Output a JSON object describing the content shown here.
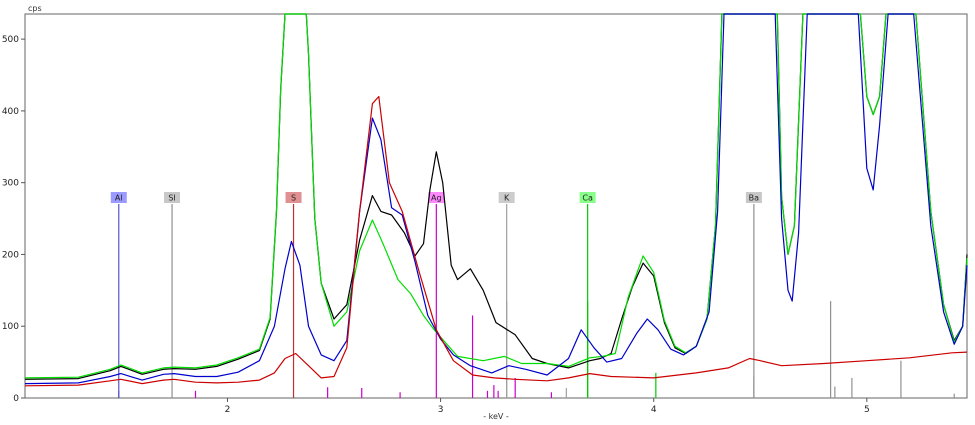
{
  "chart_data": {
    "type": "line",
    "xlabel": "- keV -",
    "ylabel": "cps",
    "xlim": [
      1.05,
      5.47
    ],
    "ylim": [
      0,
      535
    ],
    "x_ticks": [
      2,
      3,
      4,
      5
    ],
    "y_ticks": [
      0,
      100,
      200,
      300,
      400,
      500
    ],
    "grid": false,
    "series": [
      {
        "color": "#000000",
        "points": [
          [
            1.05,
            26
          ],
          [
            1.3,
            27
          ],
          [
            1.45,
            38
          ],
          [
            1.5,
            44
          ],
          [
            1.6,
            33
          ],
          [
            1.7,
            40
          ],
          [
            1.75,
            41
          ],
          [
            1.85,
            40
          ],
          [
            1.95,
            44
          ],
          [
            2.05,
            54
          ],
          [
            2.15,
            66
          ],
          [
            2.2,
            110
          ],
          [
            2.23,
            260
          ],
          [
            2.25,
            430
          ],
          [
            2.27,
            535
          ],
          [
            2.37,
            535
          ],
          [
            2.38,
            480
          ],
          [
            2.41,
            250
          ],
          [
            2.44,
            160
          ],
          [
            2.5,
            110
          ],
          [
            2.56,
            130
          ],
          [
            2.62,
            220
          ],
          [
            2.68,
            282
          ],
          [
            2.72,
            260
          ],
          [
            2.77,
            255
          ],
          [
            2.83,
            230
          ],
          [
            2.88,
            198
          ],
          [
            2.92,
            215
          ],
          [
            2.95,
            290
          ],
          [
            2.98,
            343
          ],
          [
            3.01,
            300
          ],
          [
            3.05,
            185
          ],
          [
            3.08,
            165
          ],
          [
            3.14,
            180
          ],
          [
            3.2,
            150
          ],
          [
            3.26,
            105
          ],
          [
            3.35,
            88
          ],
          [
            3.43,
            55
          ],
          [
            3.5,
            48
          ],
          [
            3.6,
            42
          ],
          [
            3.7,
            52
          ],
          [
            3.75,
            55
          ],
          [
            3.8,
            62
          ],
          [
            3.85,
            110
          ],
          [
            3.9,
            155
          ],
          [
            3.95,
            188
          ],
          [
            4.0,
            170
          ],
          [
            4.05,
            105
          ],
          [
            4.1,
            70
          ],
          [
            4.15,
            62
          ],
          [
            4.2,
            72
          ],
          [
            4.25,
            110
          ],
          [
            4.29,
            240
          ],
          [
            4.32,
            535
          ],
          [
            4.58,
            535
          ],
          [
            4.6,
            280
          ],
          [
            4.63,
            200
          ],
          [
            4.66,
            240
          ],
          [
            4.7,
            535
          ],
          [
            4.97,
            535
          ],
          [
            5.0,
            420
          ],
          [
            5.03,
            395
          ],
          [
            5.06,
            420
          ],
          [
            5.09,
            535
          ],
          [
            5.23,
            535
          ],
          [
            5.3,
            260
          ],
          [
            5.36,
            130
          ],
          [
            5.41,
            80
          ],
          [
            5.45,
            100
          ],
          [
            5.47,
            200
          ]
        ]
      },
      {
        "color": "#00dd00",
        "points": [
          [
            1.05,
            28
          ],
          [
            1.3,
            29
          ],
          [
            1.45,
            40
          ],
          [
            1.5,
            46
          ],
          [
            1.6,
            35
          ],
          [
            1.7,
            42
          ],
          [
            1.75,
            43
          ],
          [
            1.85,
            42
          ],
          [
            1.95,
            46
          ],
          [
            2.05,
            56
          ],
          [
            2.15,
            68
          ],
          [
            2.2,
            112
          ],
          [
            2.23,
            262
          ],
          [
            2.25,
            432
          ],
          [
            2.27,
            535
          ],
          [
            2.37,
            535
          ],
          [
            2.38,
            480
          ],
          [
            2.41,
            250
          ],
          [
            2.44,
            160
          ],
          [
            2.5,
            100
          ],
          [
            2.56,
            120
          ],
          [
            2.62,
            205
          ],
          [
            2.68,
            248
          ],
          [
            2.73,
            215
          ],
          [
            2.8,
            165
          ],
          [
            2.86,
            145
          ],
          [
            2.92,
            115
          ],
          [
            2.97,
            95
          ],
          [
            3.02,
            78
          ],
          [
            3.08,
            58
          ],
          [
            3.2,
            52
          ],
          [
            3.3,
            58
          ],
          [
            3.38,
            48
          ],
          [
            3.5,
            48
          ],
          [
            3.6,
            44
          ],
          [
            3.7,
            56
          ],
          [
            3.76,
            58
          ],
          [
            3.82,
            62
          ],
          [
            3.88,
            140
          ],
          [
            3.95,
            198
          ],
          [
            4.0,
            175
          ],
          [
            4.05,
            108
          ],
          [
            4.1,
            72
          ],
          [
            4.15,
            63
          ],
          [
            4.2,
            72
          ],
          [
            4.25,
            110
          ],
          [
            4.29,
            240
          ],
          [
            4.32,
            535
          ],
          [
            4.58,
            535
          ],
          [
            4.6,
            280
          ],
          [
            4.63,
            200
          ],
          [
            4.66,
            240
          ],
          [
            4.7,
            535
          ],
          [
            4.97,
            535
          ],
          [
            5.0,
            420
          ],
          [
            5.03,
            395
          ],
          [
            5.06,
            420
          ],
          [
            5.09,
            535
          ],
          [
            5.23,
            535
          ],
          [
            5.3,
            260
          ],
          [
            5.36,
            130
          ],
          [
            5.41,
            78
          ],
          [
            5.45,
            100
          ],
          [
            5.47,
            195
          ]
        ]
      },
      {
        "color": "#0000cc",
        "points": [
          [
            1.05,
            20
          ],
          [
            1.3,
            21
          ],
          [
            1.45,
            30
          ],
          [
            1.5,
            34
          ],
          [
            1.6,
            25
          ],
          [
            1.7,
            33
          ],
          [
            1.75,
            34
          ],
          [
            1.85,
            30
          ],
          [
            1.95,
            30
          ],
          [
            2.05,
            36
          ],
          [
            2.15,
            52
          ],
          [
            2.22,
            100
          ],
          [
            2.27,
            180
          ],
          [
            2.3,
            218
          ],
          [
            2.34,
            185
          ],
          [
            2.38,
            100
          ],
          [
            2.44,
            60
          ],
          [
            2.5,
            52
          ],
          [
            2.56,
            80
          ],
          [
            2.62,
            260
          ],
          [
            2.68,
            390
          ],
          [
            2.72,
            360
          ],
          [
            2.77,
            265
          ],
          [
            2.82,
            255
          ],
          [
            2.88,
            190
          ],
          [
            2.94,
            115
          ],
          [
            3.0,
            82
          ],
          [
            3.06,
            60
          ],
          [
            3.14,
            45
          ],
          [
            3.24,
            35
          ],
          [
            3.32,
            45
          ],
          [
            3.4,
            40
          ],
          [
            3.5,
            32
          ],
          [
            3.6,
            55
          ],
          [
            3.66,
            95
          ],
          [
            3.72,
            70
          ],
          [
            3.78,
            50
          ],
          [
            3.85,
            55
          ],
          [
            3.92,
            90
          ],
          [
            3.97,
            110
          ],
          [
            4.02,
            95
          ],
          [
            4.08,
            68
          ],
          [
            4.14,
            60
          ],
          [
            4.2,
            72
          ],
          [
            4.26,
            120
          ],
          [
            4.3,
            260
          ],
          [
            4.33,
            535
          ],
          [
            4.57,
            535
          ],
          [
            4.6,
            250
          ],
          [
            4.63,
            150
          ],
          [
            4.65,
            135
          ],
          [
            4.68,
            230
          ],
          [
            4.72,
            535
          ],
          [
            4.96,
            535
          ],
          [
            5.0,
            320
          ],
          [
            5.03,
            290
          ],
          [
            5.06,
            380
          ],
          [
            5.1,
            535
          ],
          [
            5.22,
            535
          ],
          [
            5.3,
            240
          ],
          [
            5.36,
            120
          ],
          [
            5.41,
            75
          ],
          [
            5.45,
            100
          ],
          [
            5.47,
            185
          ]
        ]
      },
      {
        "color": "#cc0000",
        "points": [
          [
            1.05,
            17
          ],
          [
            1.3,
            18
          ],
          [
            1.45,
            24
          ],
          [
            1.5,
            26
          ],
          [
            1.6,
            20
          ],
          [
            1.7,
            25
          ],
          [
            1.75,
            26
          ],
          [
            1.85,
            22
          ],
          [
            1.95,
            21
          ],
          [
            2.05,
            22
          ],
          [
            2.15,
            25
          ],
          [
            2.22,
            35
          ],
          [
            2.27,
            55
          ],
          [
            2.32,
            62
          ],
          [
            2.38,
            45
          ],
          [
            2.44,
            28
          ],
          [
            2.5,
            30
          ],
          [
            2.56,
            70
          ],
          [
            2.62,
            260
          ],
          [
            2.68,
            410
          ],
          [
            2.71,
            420
          ],
          [
            2.76,
            300
          ],
          [
            2.82,
            260
          ],
          [
            2.9,
            175
          ],
          [
            2.98,
            95
          ],
          [
            3.06,
            52
          ],
          [
            3.15,
            32
          ],
          [
            3.25,
            28
          ],
          [
            3.35,
            26
          ],
          [
            3.5,
            24
          ],
          [
            3.6,
            28
          ],
          [
            3.7,
            34
          ],
          [
            3.8,
            30
          ],
          [
            4.0,
            28
          ],
          [
            4.2,
            35
          ],
          [
            4.35,
            42
          ],
          [
            4.45,
            55
          ],
          [
            4.5,
            52
          ],
          [
            4.6,
            45
          ],
          [
            4.8,
            48
          ],
          [
            5.0,
            52
          ],
          [
            5.2,
            56
          ],
          [
            5.4,
            63
          ],
          [
            5.47,
            64
          ]
        ]
      }
    ],
    "element_markers": [
      {
        "label": "Al",
        "energy": 1.49,
        "color": "#5555cc",
        "tag_bg": "#9a9aff"
      },
      {
        "label": "SI",
        "energy": 1.74,
        "color": "#909090",
        "tag_bg": "#c8c8c8"
      },
      {
        "label": "S",
        "energy": 2.31,
        "color": "#c03030",
        "tag_bg": "#e09090"
      },
      {
        "label": "Ag",
        "energy": 2.98,
        "color": "#cc00cc",
        "tag_bg": "#ff88ff"
      },
      {
        "label": "K",
        "energy": 3.31,
        "color": "#a0a0a0",
        "tag_bg": "#cccccc"
      },
      {
        "label": "Ca",
        "energy": 3.69,
        "color": "#00cc00",
        "tag_bg": "#88ff88"
      },
      {
        "label": "Ba",
        "energy": 4.47,
        "color": "#909090",
        "tag_bg": "#c8c8c8"
      }
    ],
    "line_markers": [
      {
        "energy": 1.49,
        "height": 10,
        "color": "#5555cc"
      },
      {
        "energy": 1.85,
        "height": 10,
        "color": "#cc00cc"
      },
      {
        "energy": 2.47,
        "height": 15,
        "color": "#cc00cc"
      },
      {
        "energy": 2.63,
        "height": 14,
        "color": "#cc00cc"
      },
      {
        "energy": 2.81,
        "height": 8,
        "color": "#cc00cc"
      },
      {
        "energy": 3.15,
        "height": 115,
        "color": "#cc00cc"
      },
      {
        "energy": 3.22,
        "height": 10,
        "color": "#cc00cc"
      },
      {
        "energy": 3.25,
        "height": 18,
        "color": "#cc00cc"
      },
      {
        "energy": 3.27,
        "height": 10,
        "color": "#cc00cc"
      },
      {
        "energy": 3.35,
        "height": 28,
        "color": "#cc00cc"
      },
      {
        "energy": 3.52,
        "height": 8,
        "color": "#cc00cc"
      },
      {
        "energy": 3.59,
        "height": 14,
        "color": "#a0a0a0"
      },
      {
        "energy": 3.31,
        "height": 135,
        "color": "#a0a0a0"
      },
      {
        "energy": 3.69,
        "height": 135,
        "color": "#00cc00"
      },
      {
        "energy": 4.01,
        "height": 35,
        "color": "#00cc00"
      },
      {
        "energy": 4.47,
        "height": 30,
        "color": "#909090"
      },
      {
        "energy": 4.83,
        "height": 135,
        "color": "#909090"
      },
      {
        "energy": 4.85,
        "height": 16,
        "color": "#909090"
      },
      {
        "energy": 4.93,
        "height": 28,
        "color": "#909090"
      },
      {
        "energy": 5.16,
        "height": 52,
        "color": "#909090"
      },
      {
        "energy": 5.41,
        "height": 6,
        "color": "#909090"
      }
    ]
  }
}
